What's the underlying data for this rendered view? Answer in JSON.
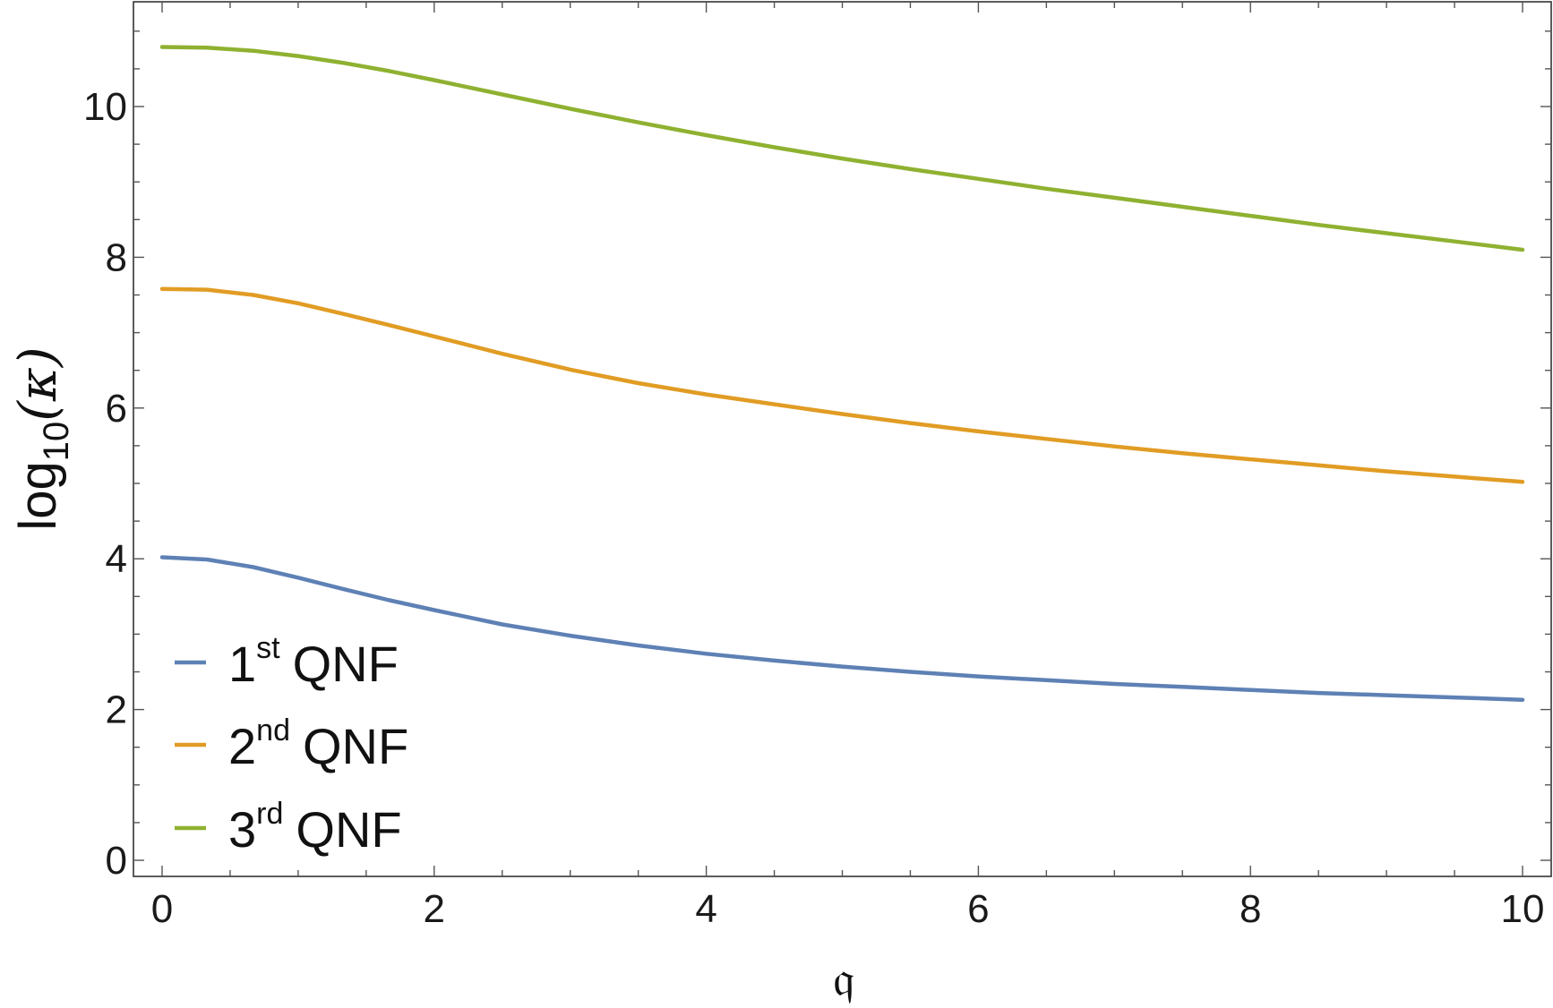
{
  "chart_data": {
    "type": "line",
    "xlabel": "𝔮",
    "ylabel": {
      "base": "log",
      "subscript": "10",
      "arg": "(κ)"
    },
    "xlim": [
      0,
      10
    ],
    "ylim": [
      0,
      11.2
    ],
    "x_ticks": [
      "0",
      "2",
      "4",
      "6",
      "8",
      "10"
    ],
    "y_ticks": [
      "0",
      "2",
      "4",
      "6",
      "8",
      "10"
    ],
    "legend_position": "bottom-left",
    "x": [
      0,
      0.33,
      0.67,
      1,
      1.33,
      1.67,
      2,
      2.5,
      3,
      3.5,
      4,
      4.5,
      5,
      5.5,
      6,
      6.5,
      7,
      7.5,
      8,
      8.5,
      9,
      9.5,
      10
    ],
    "series": [
      {
        "name": {
          "ordinal": "1",
          "sup": "st",
          "label": "QNF"
        },
        "color": "#5e81b5",
        "values": [
          4.02,
          3.99,
          3.89,
          3.75,
          3.6,
          3.45,
          3.32,
          3.13,
          2.98,
          2.85,
          2.74,
          2.65,
          2.57,
          2.5,
          2.44,
          2.39,
          2.34,
          2.3,
          2.26,
          2.22,
          2.19,
          2.16,
          2.13
        ]
      },
      {
        "name": {
          "ordinal": "2",
          "sup": "nd",
          "label": "QNF"
        },
        "color": "#e19c24",
        "values": [
          7.58,
          7.57,
          7.5,
          7.39,
          7.25,
          7.1,
          6.95,
          6.72,
          6.51,
          6.33,
          6.18,
          6.05,
          5.92,
          5.8,
          5.69,
          5.59,
          5.49,
          5.4,
          5.32,
          5.24,
          5.16,
          5.09,
          5.02
        ]
      },
      {
        "name": {
          "ordinal": "3",
          "sup": "rd",
          "label": "QNF"
        },
        "color": "#8fb131",
        "values": [
          10.79,
          10.78,
          10.74,
          10.67,
          10.58,
          10.47,
          10.35,
          10.16,
          9.97,
          9.79,
          9.62,
          9.46,
          9.31,
          9.17,
          9.04,
          8.91,
          8.79,
          8.67,
          8.55,
          8.43,
          8.32,
          8.21,
          8.1
        ]
      }
    ]
  }
}
